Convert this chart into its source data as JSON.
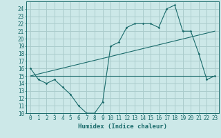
{
  "bg_color": "#cce8e8",
  "grid_color": "#aacccc",
  "line_color": "#1a6b6b",
  "xlabel": "Humidex (Indice chaleur)",
  "ylim": [
    10,
    25
  ],
  "xlim": [
    -0.5,
    23.5
  ],
  "yticks": [
    10,
    11,
    12,
    13,
    14,
    15,
    16,
    17,
    18,
    19,
    20,
    21,
    22,
    23,
    24
  ],
  "xticks": [
    0,
    1,
    2,
    3,
    4,
    5,
    6,
    7,
    8,
    9,
    10,
    11,
    12,
    13,
    14,
    15,
    16,
    17,
    18,
    19,
    20,
    21,
    22,
    23
  ],
  "series1_x": [
    0,
    1,
    2,
    3,
    4,
    5,
    6,
    7,
    8,
    9,
    10,
    11,
    12,
    13,
    14,
    15,
    16,
    17,
    18,
    19,
    20,
    21,
    22,
    23
  ],
  "series1_y": [
    16,
    14.5,
    14.0,
    14.5,
    13.5,
    12.5,
    11.0,
    10.0,
    10.0,
    11.5,
    19.0,
    19.5,
    21.5,
    22.0,
    22.0,
    22.0,
    21.5,
    24.0,
    24.5,
    21.0,
    21.0,
    18.0,
    14.5,
    15.0
  ],
  "series2_x": [
    0,
    1,
    2,
    3,
    4,
    5,
    6,
    7,
    8,
    9,
    10,
    11,
    12,
    13,
    14,
    15,
    16,
    17,
    18,
    19,
    20,
    21,
    22,
    23
  ],
  "series2_y": [
    15.0,
    15.0,
    15.0,
    15.0,
    15.0,
    15.0,
    15.0,
    15.0,
    15.0,
    15.0,
    15.0,
    15.0,
    15.0,
    15.0,
    15.0,
    15.0,
    15.0,
    15.0,
    15.0,
    15.0,
    15.0,
    15.0,
    15.0,
    15.0
  ],
  "series3_x": [
    0,
    23
  ],
  "series3_y": [
    15.0,
    21.0
  ]
}
